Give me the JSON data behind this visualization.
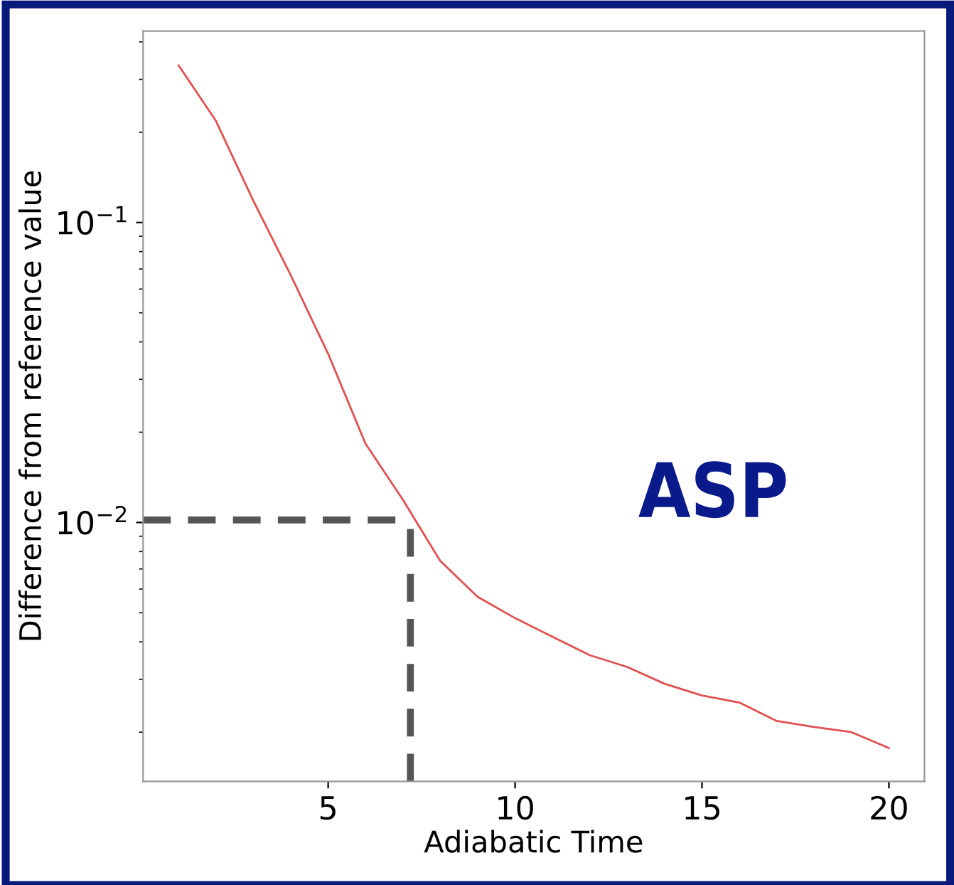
{
  "chart_data": {
    "type": "line",
    "xlabel": "Adiabatic Time",
    "ylabel": "Difference from reference value",
    "log": "y",
    "x": [
      1,
      2,
      3,
      4,
      5,
      6,
      7,
      8,
      9,
      10,
      11,
      12,
      13,
      14,
      15,
      16,
      17,
      18,
      19,
      20
    ],
    "series": [
      {
        "color": "#e05050",
        "values": [
          0.334,
          0.218,
          0.118,
          0.0667,
          0.0365,
          0.0183,
          0.0119,
          0.00744,
          0.00565,
          0.0048,
          0.00416,
          0.00361,
          0.0033,
          0.0029,
          0.00265,
          0.00251,
          0.00218,
          0.00208,
          0.002,
          0.00177
        ]
      }
    ],
    "ref_lines": [
      {
        "axis": "x",
        "value": 7.2,
        "color": "#555555",
        "line_style": "dashed"
      },
      {
        "axis": "y",
        "value": 0.0102,
        "color": "#555555",
        "line_style": "dashed"
      }
    ],
    "xlim": [
      0.05,
      20.95
    ],
    "ylim": [
      0.00137,
      0.435
    ],
    "xticks": [
      5,
      10,
      15,
      20
    ],
    "yticks": [
      {
        "value": 0.1,
        "label": "10$^{−1}$"
      },
      {
        "value": 0.01,
        "label": "10$^{−2}$"
      }
    ],
    "annotations": [
      "ASP"
    ],
    "grid": false
  }
}
